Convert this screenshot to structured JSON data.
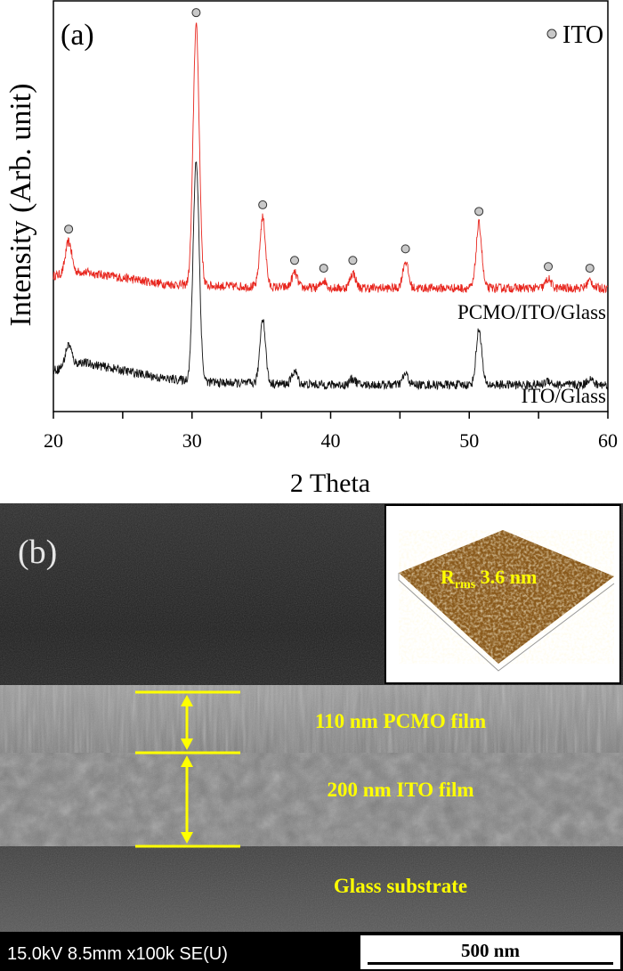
{
  "chart_data": {
    "type": "line",
    "panel_label": "(a)",
    "xlabel": "2 Theta",
    "ylabel": "Intensity (Arb. unit)",
    "xlim": [
      20,
      60
    ],
    "ylim": [
      0,
      1000
    ],
    "xticks": [
      "20",
      "30",
      "40",
      "50",
      "60"
    ],
    "minor_xtick_step": 5,
    "grid": false,
    "legend": {
      "marker": "circle",
      "label": "ITO",
      "placement": "top-right",
      "marker_color": "#c8c8c8"
    },
    "series": [
      {
        "name": "PCMO/ITO/Glass",
        "color": "#e8261e",
        "baseline": [
          [
            20,
            330
          ],
          [
            22,
            340
          ],
          [
            28,
            310
          ],
          [
            32,
            305
          ],
          [
            40,
            300
          ],
          [
            60,
            300
          ]
        ],
        "peaks": [
          [
            21.1,
            413
          ],
          [
            30.3,
            939
          ],
          [
            35.1,
            472
          ],
          [
            37.4,
            337
          ],
          [
            39.5,
            318
          ],
          [
            41.6,
            337
          ],
          [
            45.4,
            365
          ],
          [
            50.7,
            456
          ],
          [
            55.7,
            322
          ],
          [
            58.7,
            318
          ]
        ],
        "ito_marked_peaks": [
          21.1,
          30.3,
          35.1,
          37.4,
          39.5,
          41.6,
          45.4,
          50.7,
          55.7,
          58.7
        ]
      },
      {
        "name": "ITO/Glass",
        "color": "#111111",
        "baseline": [
          [
            20,
            100
          ],
          [
            22,
            120
          ],
          [
            28,
            80
          ],
          [
            32,
            70
          ],
          [
            40,
            65
          ],
          [
            60,
            65
          ]
        ],
        "peaks": [
          [
            21.1,
            163
          ],
          [
            30.3,
            609
          ],
          [
            35.1,
            228
          ],
          [
            37.4,
            98
          ],
          [
            41.6,
            80
          ],
          [
            45.4,
            91
          ],
          [
            50.7,
            200
          ],
          [
            55.7,
            76
          ],
          [
            58.7,
            80
          ]
        ]
      }
    ]
  },
  "sem": {
    "panel_label": "(b)",
    "inset": {
      "label_main": "R",
      "label_sub": "rms",
      "label_value": " 3.6 nm"
    },
    "layers": [
      {
        "label": "110 nm PCMO film"
      },
      {
        "label": "200 nm ITO film"
      },
      {
        "label": "Glass substrate"
      }
    ],
    "annotation_color": "#ffff00",
    "info_bar": {
      "text": "15.0kV 8.5mm x100k SE(U)",
      "scale_label": "500 nm"
    }
  }
}
